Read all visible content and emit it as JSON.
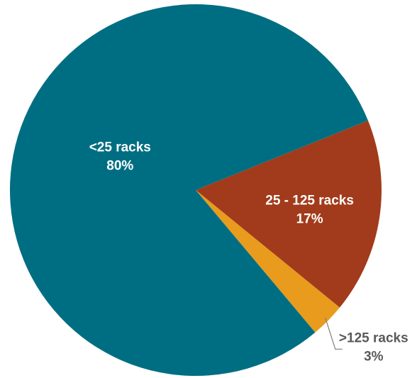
{
  "chart_data": {
    "type": "pie",
    "title": "",
    "slices": [
      {
        "label": "25 - 125 racks",
        "value": 17,
        "value_label": "17%",
        "color": "#A23B1B",
        "label_color": "#ffffff",
        "label_placement": "inside"
      },
      {
        "label": ">125 racks",
        "value": 3,
        "value_label": "3%",
        "color": "#E89B1C",
        "label_color": "#595959",
        "label_placement": "outside"
      },
      {
        "label": "<25 racks",
        "value": 80,
        "value_label": "80%",
        "color": "#006E82",
        "label_color": "#ffffff",
        "label_placement": "inside"
      }
    ],
    "start_angle_deg": 22,
    "direction": "clockwise",
    "legend": "none",
    "grid": false
  }
}
